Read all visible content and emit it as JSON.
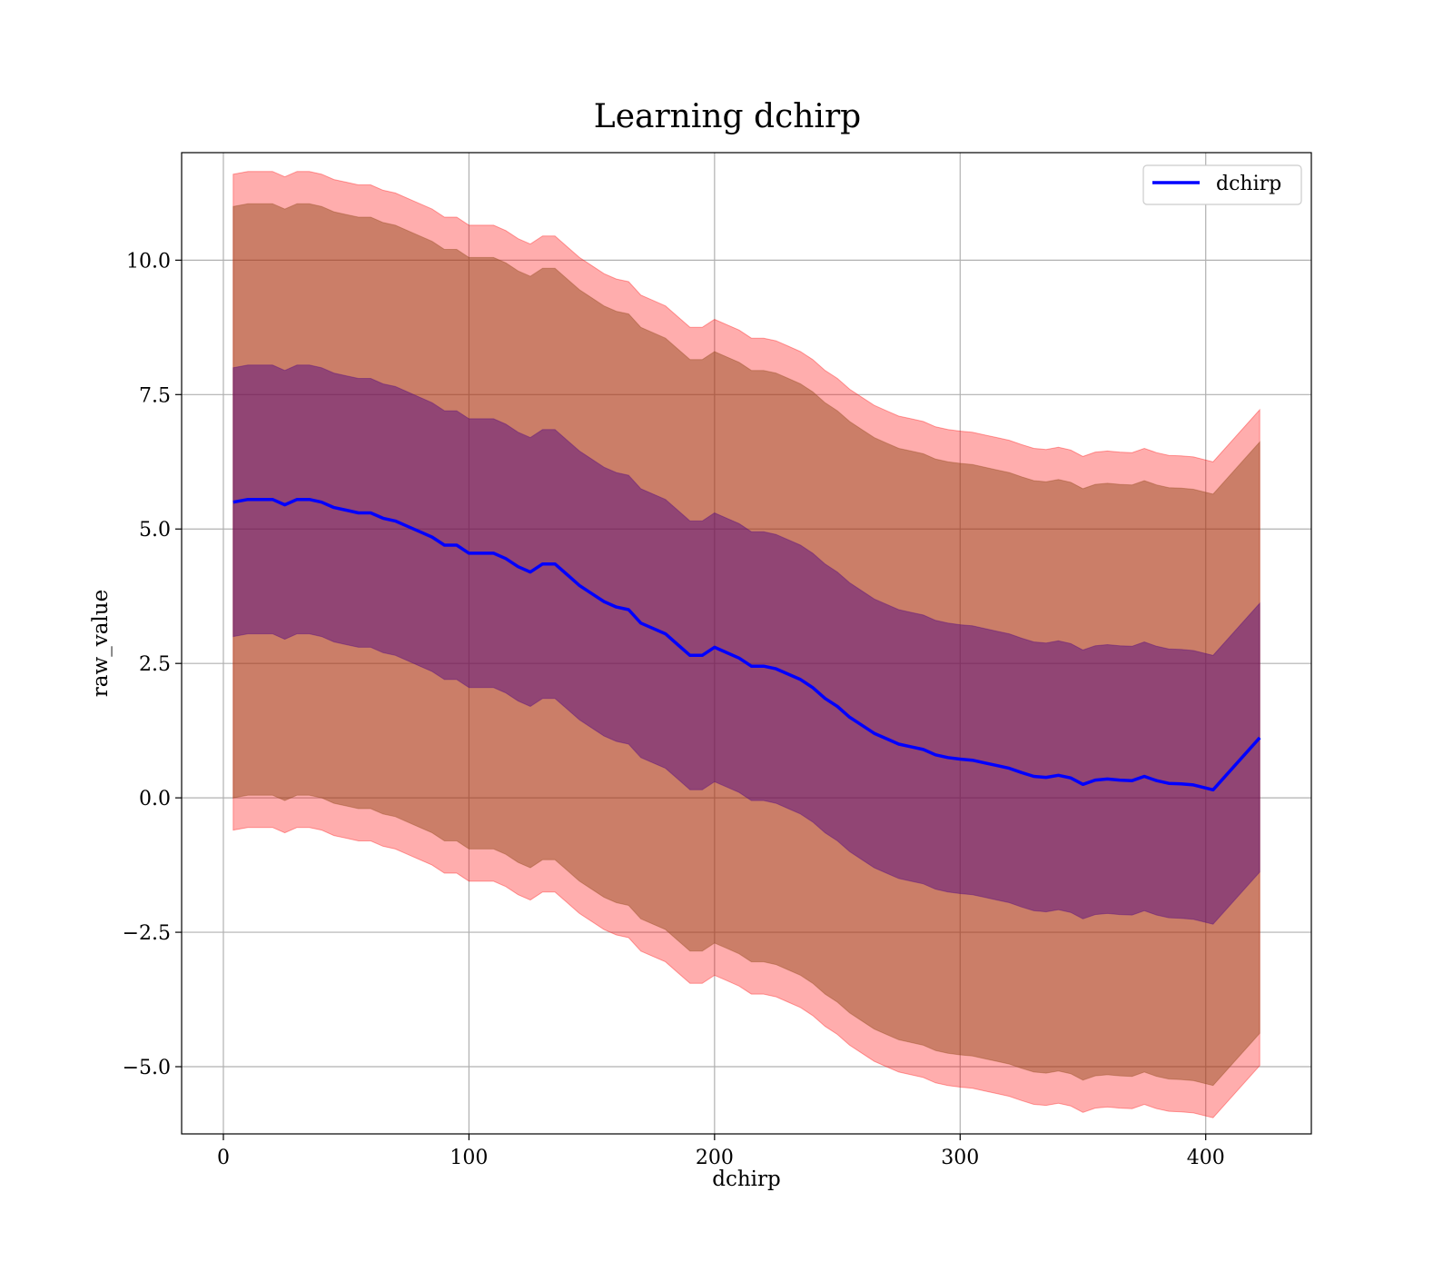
{
  "chart_data": {
    "type": "line",
    "title": "Learning dchirp",
    "xlabel": "dchirp",
    "ylabel": "raw_value",
    "xlim": [
      -17,
      443
    ],
    "ylim": [
      -6.25,
      12.0
    ],
    "xticks": [
      0,
      100,
      200,
      300,
      400
    ],
    "xtick_labels": [
      "0",
      "100",
      "200",
      "300",
      "400"
    ],
    "yticks": [
      -5.0,
      -2.5,
      0.0,
      2.5,
      5.0,
      7.5,
      10.0
    ],
    "ytick_labels": [
      "−5.0",
      "−2.5",
      "0.0",
      "2.5",
      "5.0",
      "7.5",
      "10.0"
    ],
    "grid": true,
    "legend": {
      "position": "top-right",
      "entries": [
        "dchirp"
      ]
    },
    "colors": {
      "line": "#0000ff",
      "band_outer": "#ff0000",
      "band_middle": "#8b4513",
      "band_inner": "#4b0082"
    },
    "band_offsets": [
      6.1,
      5.5,
      2.5
    ],
    "series": [
      {
        "name": "dchirp",
        "x": [
          4,
          10,
          15,
          20,
          25,
          30,
          35,
          40,
          45,
          50,
          55,
          60,
          65,
          70,
          75,
          80,
          85,
          90,
          95,
          100,
          105,
          110,
          115,
          120,
          125,
          130,
          135,
          140,
          145,
          150,
          155,
          160,
          165,
          170,
          175,
          180,
          185,
          190,
          195,
          200,
          205,
          210,
          215,
          220,
          225,
          230,
          235,
          240,
          245,
          250,
          255,
          260,
          265,
          270,
          275,
          280,
          285,
          290,
          295,
          300,
          305,
          310,
          315,
          320,
          325,
          330,
          335,
          340,
          345,
          350,
          355,
          360,
          365,
          370,
          375,
          380,
          385,
          390,
          395,
          403,
          422
        ],
        "y": [
          5.5,
          5.55,
          5.55,
          5.55,
          5.45,
          5.55,
          5.55,
          5.5,
          5.4,
          5.35,
          5.3,
          5.3,
          5.2,
          5.15,
          5.05,
          4.95,
          4.85,
          4.7,
          4.7,
          4.55,
          4.55,
          4.55,
          4.45,
          4.3,
          4.2,
          4.35,
          4.35,
          4.15,
          3.95,
          3.8,
          3.65,
          3.55,
          3.5,
          3.25,
          3.15,
          3.05,
          2.85,
          2.65,
          2.65,
          2.8,
          2.7,
          2.6,
          2.45,
          2.45,
          2.4,
          2.3,
          2.2,
          2.05,
          1.85,
          1.7,
          1.5,
          1.35,
          1.2,
          1.1,
          1.0,
          0.95,
          0.9,
          0.8,
          0.75,
          0.72,
          0.7,
          0.65,
          0.6,
          0.55,
          0.47,
          0.4,
          0.38,
          0.42,
          0.37,
          0.25,
          0.33,
          0.35,
          0.33,
          0.32,
          0.4,
          0.32,
          0.27,
          0.26,
          0.24,
          0.15,
          1.12
        ]
      }
    ]
  }
}
